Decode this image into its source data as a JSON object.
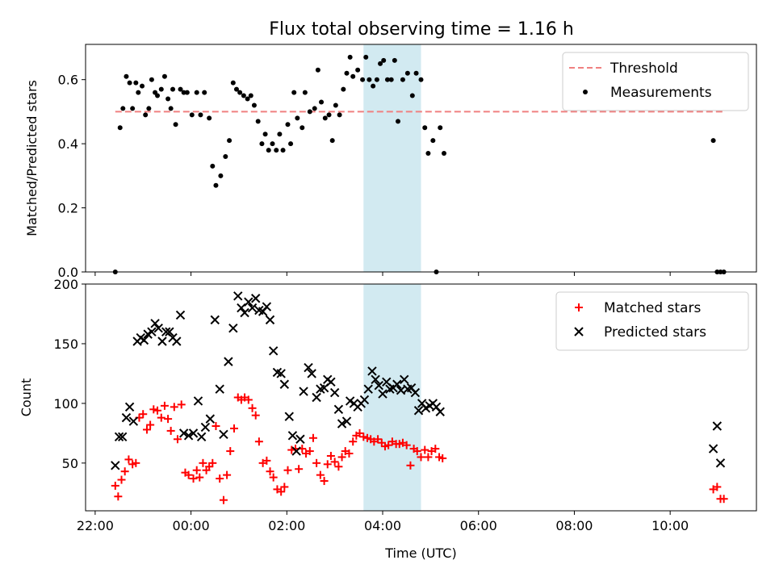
{
  "figure": {
    "title": "Flux total observing time = 1.16 h"
  },
  "colors": {
    "threshold": "#f08080",
    "measurement": "#000000",
    "matched": "#ff0000",
    "predicted": "#000000",
    "highlight": "#add8e6"
  },
  "chart_data": [
    {
      "type": "scatter",
      "panel": "top",
      "title": "Flux total observing time = 1.16 h",
      "xlabel": "",
      "ylabel": "Matched/Predicted stars",
      "y_ticks": [
        "0.0",
        "0.2",
        "0.4",
        "0.6"
      ],
      "ylim": [
        0,
        0.71
      ],
      "x_unit": "hours relative to 00:00 UTC",
      "xlim": [
        -2.2,
        11.8
      ],
      "grid": false,
      "legend_position": "upper right",
      "highlight_span": {
        "from": "03:36",
        "to": "04:48"
      },
      "series": [
        {
          "name": "Threshold",
          "style": "dashed line",
          "x": [
            -1.58,
            11.12
          ],
          "y": [
            0.5,
            0.5
          ]
        },
        {
          "name": "Measurements",
          "style": "dots",
          "x": [
            -1.58,
            -1.48,
            -1.42,
            -1.35,
            -1.28,
            -1.22,
            -1.15,
            -1.1,
            -1.02,
            -0.95,
            -0.88,
            -0.82,
            -0.75,
            -0.7,
            -0.62,
            -0.55,
            -0.48,
            -0.42,
            -0.38,
            -0.32,
            -0.22,
            -0.15,
            -0.08,
            0.02,
            0.12,
            0.2,
            0.28,
            0.38,
            0.45,
            0.52,
            0.62,
            0.72,
            0.8,
            0.88,
            0.95,
            1.02,
            1.1,
            1.18,
            1.25,
            1.32,
            1.4,
            1.48,
            1.55,
            1.62,
            1.7,
            1.78,
            1.85,
            1.92,
            2.02,
            2.08,
            2.15,
            2.22,
            2.32,
            2.38,
            2.48,
            2.58,
            2.65,
            2.72,
            2.8,
            2.88,
            2.95,
            3.02,
            3.1,
            3.18,
            3.25,
            3.32,
            3.38,
            3.48,
            3.58,
            3.65,
            3.72,
            3.8,
            3.88,
            3.95,
            4.02,
            4.1,
            4.18,
            4.25,
            4.32,
            4.42,
            4.52,
            4.62,
            4.7,
            4.8,
            4.88,
            4.95,
            5.05,
            5.12,
            5.2,
            5.28,
            10.9,
            10.98,
            11.05,
            11.12
          ],
          "y": [
            0.0,
            0.45,
            0.51,
            0.61,
            0.59,
            0.51,
            0.59,
            0.56,
            0.58,
            0.49,
            0.51,
            0.6,
            0.56,
            0.55,
            0.57,
            0.61,
            0.54,
            0.51,
            0.57,
            0.46,
            0.57,
            0.56,
            0.56,
            0.49,
            0.56,
            0.49,
            0.56,
            0.48,
            0.33,
            0.27,
            0.3,
            0.36,
            0.41,
            0.59,
            0.57,
            0.56,
            0.55,
            0.54,
            0.55,
            0.52,
            0.47,
            0.4,
            0.43,
            0.38,
            0.4,
            0.38,
            0.43,
            0.38,
            0.46,
            0.4,
            0.56,
            0.48,
            0.45,
            0.56,
            0.5,
            0.51,
            0.63,
            0.53,
            0.48,
            0.49,
            0.41,
            0.52,
            0.49,
            0.57,
            0.62,
            0.67,
            0.61,
            0.63,
            0.6,
            0.67,
            0.6,
            0.58,
            0.6,
            0.65,
            0.66,
            0.6,
            0.6,
            0.66,
            0.47,
            0.6,
            0.62,
            0.55,
            0.62,
            0.6,
            0.45,
            0.37,
            0.41,
            0.0,
            0.45,
            0.37,
            0.41,
            0.0,
            0.0,
            0.0
          ]
        }
      ]
    },
    {
      "type": "scatter",
      "panel": "bottom",
      "xlabel": "Time (UTC)",
      "ylabel": "Count",
      "y_ticks": [
        "50",
        "100",
        "150",
        "200"
      ],
      "x_ticks": [
        "22:00",
        "00:00",
        "02:00",
        "04:00",
        "06:00",
        "08:00",
        "10:00"
      ],
      "ylim": [
        10,
        200
      ],
      "x_unit": "hours relative to 00:00 UTC",
      "xlim": [
        -2.2,
        11.8
      ],
      "grid": false,
      "legend_position": "upper right",
      "highlight_span": {
        "from": "03:36",
        "to": "04:48"
      },
      "series": [
        {
          "name": "Matched stars",
          "marker": "+",
          "x": [
            -1.58,
            -1.52,
            -1.45,
            -1.38,
            -1.3,
            -1.22,
            -1.15,
            -1.08,
            -1.0,
            -0.92,
            -0.85,
            -0.78,
            -0.7,
            -0.62,
            -0.55,
            -0.48,
            -0.42,
            -0.35,
            -0.28,
            -0.2,
            -0.12,
            -0.05,
            0.05,
            0.12,
            0.18,
            0.25,
            0.32,
            0.38,
            0.45,
            0.52,
            0.6,
            0.68,
            0.75,
            0.82,
            0.9,
            0.98,
            1.05,
            1.12,
            1.2,
            1.28,
            1.35,
            1.42,
            1.5,
            1.58,
            1.65,
            1.72,
            1.8,
            1.88,
            1.95,
            2.02,
            2.1,
            2.18,
            2.25,
            2.32,
            2.4,
            2.48,
            2.55,
            2.62,
            2.7,
            2.78,
            2.85,
            2.92,
            3.0,
            3.08,
            3.15,
            3.22,
            3.3,
            3.38,
            3.45,
            3.52,
            3.6,
            3.68,
            3.75,
            3.82,
            3.9,
            3.98,
            4.05,
            4.12,
            4.2,
            4.28,
            4.35,
            4.42,
            4.5,
            4.58,
            4.65,
            4.72,
            4.8,
            4.88,
            4.95,
            5.02,
            5.1,
            5.18,
            5.25,
            10.9,
            10.98,
            11.05,
            11.12
          ],
          "y": [
            31,
            22,
            36,
            43,
            53,
            49,
            50,
            88,
            91,
            78,
            82,
            95,
            94,
            88,
            98,
            87,
            77,
            97,
            70,
            99,
            42,
            40,
            37,
            44,
            38,
            50,
            44,
            47,
            50,
            81,
            37,
            19,
            40,
            60,
            79,
            105,
            103,
            105,
            103,
            96,
            90,
            68,
            50,
            52,
            43,
            38,
            28,
            26,
            30,
            44,
            61,
            62,
            45,
            62,
            58,
            60,
            71,
            50,
            40,
            35,
            49,
            56,
            51,
            47,
            55,
            60,
            58,
            68,
            73,
            75,
            72,
            71,
            70,
            68,
            70,
            67,
            64,
            65,
            68,
            66,
            66,
            67,
            65,
            48,
            62,
            60,
            55,
            61,
            55,
            60,
            62,
            55,
            54,
            28,
            30,
            20,
            20
          ]
        },
        {
          "name": "Predicted stars",
          "marker": "x",
          "x": [
            -1.58,
            -1.5,
            -1.43,
            -1.35,
            -1.28,
            -1.2,
            -1.12,
            -1.05,
            -0.98,
            -0.9,
            -0.82,
            -0.75,
            -0.68,
            -0.6,
            -0.52,
            -0.45,
            -0.38,
            -0.3,
            -0.22,
            -0.15,
            -0.05,
            0.05,
            0.15,
            0.22,
            0.3,
            0.4,
            0.5,
            0.6,
            0.68,
            0.78,
            0.88,
            0.98,
            1.05,
            1.12,
            1.2,
            1.28,
            1.35,
            1.42,
            1.5,
            1.58,
            1.65,
            1.72,
            1.8,
            1.88,
            1.95,
            2.05,
            2.12,
            2.2,
            2.28,
            2.35,
            2.45,
            2.52,
            2.62,
            2.7,
            2.78,
            2.85,
            2.92,
            3.0,
            3.08,
            3.15,
            3.25,
            3.32,
            3.4,
            3.48,
            3.55,
            3.62,
            3.7,
            3.78,
            3.85,
            3.92,
            4.0,
            4.08,
            4.15,
            4.22,
            4.3,
            4.38,
            4.45,
            4.52,
            4.6,
            4.68,
            4.75,
            4.82,
            4.9,
            4.98,
            5.05,
            5.12,
            5.2,
            10.9,
            10.98,
            11.05
          ],
          "y": [
            48,
            72,
            72,
            88,
            97,
            85,
            152,
            155,
            153,
            158,
            160,
            167,
            163,
            152,
            160,
            160,
            155,
            152,
            174,
            75,
            73,
            75,
            102,
            72,
            80,
            87,
            170,
            112,
            74,
            135,
            163,
            190,
            180,
            176,
            185,
            180,
            188,
            178,
            177,
            181,
            170,
            144,
            126,
            125,
            116,
            89,
            73,
            60,
            70,
            110,
            130,
            125,
            105,
            112,
            113,
            120,
            118,
            109,
            95,
            83,
            85,
            102,
            100,
            97,
            100,
            103,
            112,
            127,
            120,
            115,
            108,
            118,
            112,
            113,
            116,
            111,
            120,
            112,
            113,
            109,
            94,
            100,
            96,
            98,
            100,
            97,
            93,
            62,
            81,
            50
          ]
        }
      ]
    }
  ]
}
